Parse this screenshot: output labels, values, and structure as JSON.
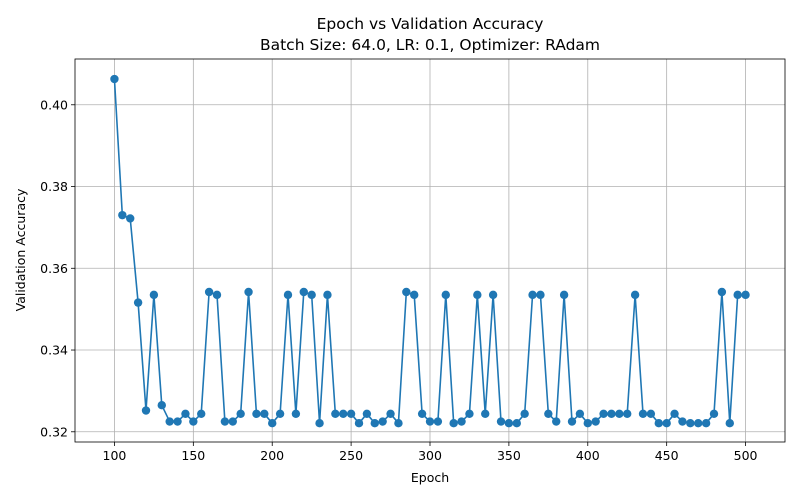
{
  "chart_data": {
    "type": "line",
    "title": "Epoch vs Validation Accuracy",
    "subtitle": "Batch Size: 64.0, LR: 0.1, Optimizer: RAdam",
    "xlabel": "Epoch",
    "ylabel": "Validation Accuracy",
    "xlim": [
      75,
      525
    ],
    "ylim": [
      0.3175,
      0.4112
    ],
    "xticks": [
      100,
      150,
      200,
      250,
      300,
      350,
      400,
      450,
      500
    ],
    "yticks": [
      0.32,
      0.34,
      0.36,
      0.38,
      0.4
    ],
    "ytick_labels": [
      "0.32",
      "0.34",
      "0.36",
      "0.38",
      "0.40"
    ],
    "grid": true,
    "color": "#1f77b4",
    "x": [
      100,
      105,
      110,
      115,
      120,
      125,
      130,
      135,
      140,
      145,
      150,
      155,
      160,
      165,
      170,
      175,
      180,
      185,
      190,
      195,
      200,
      205,
      210,
      215,
      220,
      225,
      230,
      235,
      240,
      245,
      250,
      255,
      260,
      265,
      270,
      275,
      280,
      285,
      290,
      295,
      300,
      305,
      310,
      315,
      320,
      325,
      330,
      335,
      340,
      345,
      350,
      355,
      360,
      365,
      370,
      375,
      380,
      385,
      390,
      395,
      400,
      405,
      410,
      415,
      420,
      425,
      430,
      435,
      440,
      445,
      450,
      455,
      460,
      465,
      470,
      475,
      480,
      485,
      490,
      495,
      500
    ],
    "y": [
      0.4063,
      0.373,
      0.3722,
      0.3516,
      0.3252,
      0.3535,
      0.3265,
      0.3225,
      0.3225,
      0.3244,
      0.3225,
      0.3244,
      0.3542,
      0.3535,
      0.3225,
      0.3225,
      0.3244,
      0.3542,
      0.3244,
      0.3244,
      0.3221,
      0.3244,
      0.3535,
      0.3244,
      0.3542,
      0.3535,
      0.3221,
      0.3535,
      0.3244,
      0.3244,
      0.3244,
      0.3221,
      0.3244,
      0.3221,
      0.3225,
      0.3244,
      0.3221,
      0.3542,
      0.3535,
      0.3244,
      0.3225,
      0.3225,
      0.3535,
      0.3221,
      0.3225,
      0.3244,
      0.3535,
      0.3244,
      0.3535,
      0.3225,
      0.3221,
      0.3221,
      0.3244,
      0.3535,
      0.3535,
      0.3244,
      0.3225,
      0.3535,
      0.3225,
      0.3244,
      0.3221,
      0.3225,
      0.3244,
      0.3244,
      0.3244,
      0.3244,
      0.3535,
      0.3244,
      0.3244,
      0.3221,
      0.3221,
      0.3244,
      0.3225,
      0.3221,
      0.3221,
      0.3221,
      0.3244,
      0.3542,
      0.3221,
      0.3535,
      0.3535
    ]
  }
}
